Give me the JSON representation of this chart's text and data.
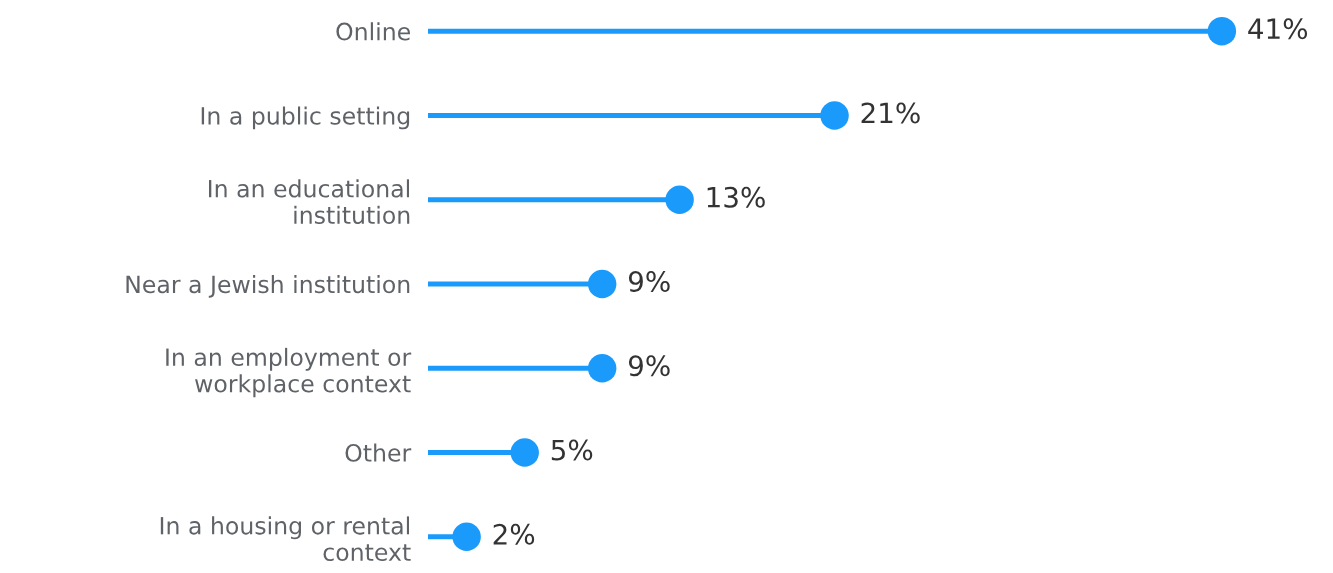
{
  "chart_data": {
    "type": "lollipop",
    "orientation": "horizontal",
    "categories": [
      "Online",
      "In a public setting",
      "In an educational\ninstitution",
      "Near a Jewish institution",
      "In an employment or\nworkplace context",
      "Other",
      "In a housing or rental\ncontext"
    ],
    "values": [
      41,
      21,
      13,
      9,
      9,
      5,
      2
    ],
    "value_labels": [
      "41%",
      "21%",
      "13%",
      "9%",
      "9%",
      "5%",
      "2%"
    ],
    "color": "#1a9bfc",
    "marker": "circle",
    "grid": false,
    "legend": false
  }
}
